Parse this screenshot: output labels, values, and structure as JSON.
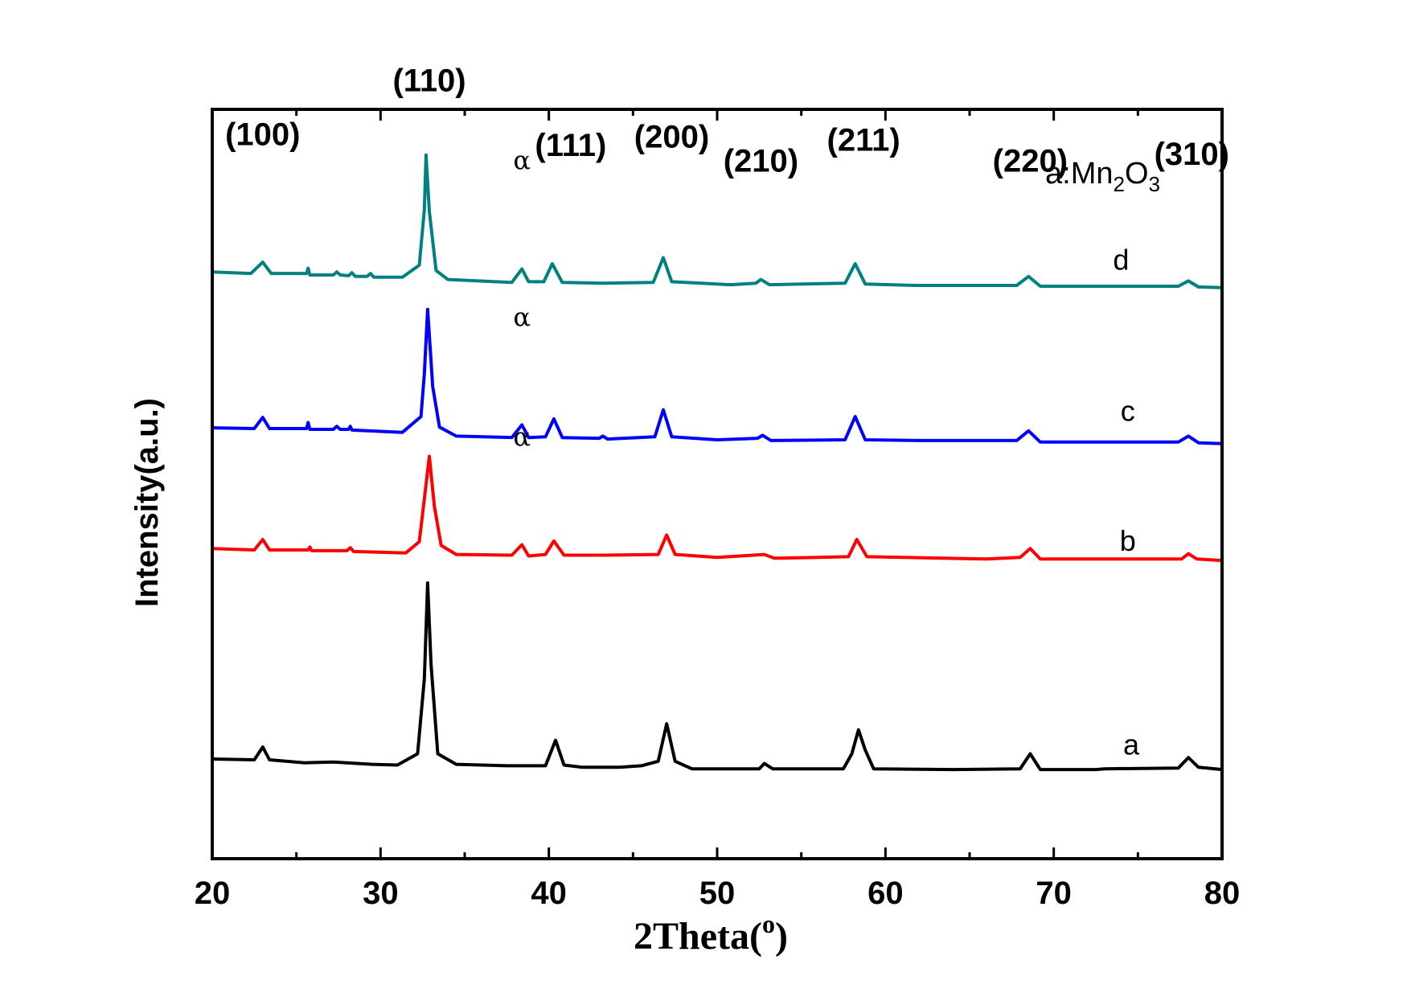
{
  "chart_data": {
    "type": "line",
    "title": "",
    "xlabel": "2Theta(",
    "xlabel_sup": "o",
    "xlabel_close": ")",
    "ylabel": "Intensity(a.u.)",
    "xlim": [
      20,
      80
    ],
    "ylim": [
      0,
      100
    ],
    "xticks": [
      20,
      30,
      40,
      50,
      60,
      70,
      80
    ],
    "annotation": {
      "prefix": "a:Mn",
      "sub1": "2",
      "mid": "O",
      "sub2": "3"
    },
    "peaks_hkl": [
      {
        "label": "(100)",
        "x": 23.0,
        "y": 95.2
      },
      {
        "label": "(110)",
        "x": 32.9,
        "y": 102.4
      },
      {
        "label": "(111)",
        "x": 41.3,
        "y": 93.8
      },
      {
        "label": "(200)",
        "x": 47.3,
        "y": 94.9
      },
      {
        "label": "(210)",
        "x": 52.6,
        "y": 91.7
      },
      {
        "label": "(211)",
        "x": 58.7,
        "y": 94.5
      },
      {
        "label": "(220)",
        "x": 68.6,
        "y": 91.7
      },
      {
        "label": "(310)",
        "x": 78.2,
        "y": 92.6
      }
    ],
    "alpha_marks": [
      {
        "label": "α",
        "x": 38.4,
        "y": 92.0
      },
      {
        "label": "α",
        "x": 38.4,
        "y": 71.1
      },
      {
        "label": "α",
        "x": 38.4,
        "y": 55.1
      }
    ],
    "series": [
      {
        "name": "a",
        "color": "#000000",
        "label_x": 74.6,
        "label_y": 13.9,
        "points": [
          [
            20,
            13.3
          ],
          [
            22.5,
            13.2
          ],
          [
            23.0,
            14.9
          ],
          [
            23.4,
            13.2
          ],
          [
            25.5,
            12.8
          ],
          [
            27.2,
            12.9
          ],
          [
            29.5,
            12.6
          ],
          [
            31.0,
            12.5
          ],
          [
            32.2,
            14.0
          ],
          [
            32.6,
            24.0
          ],
          [
            32.8,
            36.8
          ],
          [
            33.0,
            26.0
          ],
          [
            33.4,
            14.0
          ],
          [
            34.5,
            12.6
          ],
          [
            37.5,
            12.4
          ],
          [
            39.8,
            12.4
          ],
          [
            40.4,
            15.8
          ],
          [
            40.9,
            12.5
          ],
          [
            42.0,
            12.2
          ],
          [
            44.2,
            12.2
          ],
          [
            45.5,
            12.4
          ],
          [
            46.5,
            13.0
          ],
          [
            47.0,
            18.0
          ],
          [
            47.5,
            13.0
          ],
          [
            48.5,
            12.0
          ],
          [
            52.5,
            12.0
          ],
          [
            52.8,
            12.7
          ],
          [
            53.3,
            12.0
          ],
          [
            57.5,
            12.0
          ],
          [
            58.0,
            14.0
          ],
          [
            58.4,
            17.2
          ],
          [
            58.8,
            14.5
          ],
          [
            59.3,
            12.0
          ],
          [
            64.0,
            11.9
          ],
          [
            68.0,
            12.0
          ],
          [
            68.6,
            14.0
          ],
          [
            69.2,
            11.9
          ],
          [
            72.5,
            11.9
          ],
          [
            73.0,
            12.0
          ],
          [
            77.4,
            12.1
          ],
          [
            78.0,
            13.5
          ],
          [
            78.6,
            12.2
          ],
          [
            80,
            11.9
          ]
        ]
      },
      {
        "name": "b",
        "color": "#ff0000",
        "label_x": 74.4,
        "label_y": 41.1,
        "points": [
          [
            20,
            41.4
          ],
          [
            22.5,
            41.2
          ],
          [
            23.0,
            42.6
          ],
          [
            23.4,
            41.2
          ],
          [
            25.7,
            41.2
          ],
          [
            25.8,
            41.6
          ],
          [
            25.9,
            41.1
          ],
          [
            28.0,
            41.1
          ],
          [
            28.2,
            41.5
          ],
          [
            28.4,
            41.0
          ],
          [
            31.5,
            40.8
          ],
          [
            32.3,
            42.3
          ],
          [
            32.6,
            48.0
          ],
          [
            32.9,
            53.7
          ],
          [
            33.2,
            47.0
          ],
          [
            33.6,
            41.8
          ],
          [
            34.5,
            40.6
          ],
          [
            37.8,
            40.5
          ],
          [
            38.4,
            41.9
          ],
          [
            38.8,
            40.4
          ],
          [
            39.8,
            40.6
          ],
          [
            40.3,
            42.4
          ],
          [
            40.9,
            40.5
          ],
          [
            43.2,
            40.5
          ],
          [
            46.5,
            40.6
          ],
          [
            47.0,
            43.2
          ],
          [
            47.5,
            40.6
          ],
          [
            50.0,
            40.2
          ],
          [
            52.8,
            40.6
          ],
          [
            53.4,
            40.1
          ],
          [
            57.8,
            40.3
          ],
          [
            58.3,
            42.6
          ],
          [
            58.9,
            40.3
          ],
          [
            66.0,
            40.0
          ],
          [
            68.0,
            40.2
          ],
          [
            68.6,
            41.4
          ],
          [
            69.2,
            40.0
          ],
          [
            72.0,
            40.0
          ],
          [
            77.6,
            40.0
          ],
          [
            78.0,
            40.7
          ],
          [
            78.5,
            40.0
          ],
          [
            80,
            39.8
          ]
        ]
      },
      {
        "name": "c",
        "color": "#0000ff",
        "label_x": 74.4,
        "label_y": 58.4,
        "points": [
          [
            20,
            57.5
          ],
          [
            22.5,
            57.4
          ],
          [
            23.0,
            58.9
          ],
          [
            23.4,
            57.4
          ],
          [
            25.6,
            57.4
          ],
          [
            25.7,
            58.2
          ],
          [
            25.8,
            57.3
          ],
          [
            27.2,
            57.3
          ],
          [
            27.4,
            57.7
          ],
          [
            27.6,
            57.3
          ],
          [
            28.1,
            57.3
          ],
          [
            28.2,
            57.7
          ],
          [
            28.3,
            57.2
          ],
          [
            31.3,
            56.9
          ],
          [
            32.4,
            59.0
          ],
          [
            32.6,
            64.7
          ],
          [
            32.8,
            73.3
          ],
          [
            33.1,
            63.0
          ],
          [
            33.5,
            57.6
          ],
          [
            34.5,
            56.4
          ],
          [
            37.8,
            56.2
          ],
          [
            38.4,
            57.9
          ],
          [
            38.8,
            56.2
          ],
          [
            39.8,
            56.3
          ],
          [
            40.3,
            58.7
          ],
          [
            40.8,
            56.2
          ],
          [
            43.0,
            56.1
          ],
          [
            43.2,
            56.4
          ],
          [
            43.5,
            56.0
          ],
          [
            46.3,
            56.3
          ],
          [
            46.8,
            59.9
          ],
          [
            47.3,
            56.3
          ],
          [
            50.0,
            55.9
          ],
          [
            52.4,
            56.1
          ],
          [
            52.7,
            56.5
          ],
          [
            53.2,
            55.8
          ],
          [
            57.6,
            55.9
          ],
          [
            58.2,
            59.0
          ],
          [
            58.8,
            55.9
          ],
          [
            62.0,
            55.8
          ],
          [
            67.8,
            55.8
          ],
          [
            68.5,
            57.1
          ],
          [
            69.2,
            55.6
          ],
          [
            72.5,
            55.6
          ],
          [
            77.4,
            55.6
          ],
          [
            78.0,
            56.4
          ],
          [
            78.6,
            55.5
          ],
          [
            80,
            55.4
          ]
        ]
      },
      {
        "name": "d",
        "color": "#008080",
        "label_x": 74.0,
        "label_y": 78.6,
        "points": [
          [
            20,
            78.3
          ],
          [
            22.3,
            78.1
          ],
          [
            23.0,
            79.6
          ],
          [
            23.5,
            78.1
          ],
          [
            25.6,
            78.1
          ],
          [
            25.7,
            78.8
          ],
          [
            25.8,
            77.9
          ],
          [
            27.2,
            77.9
          ],
          [
            27.4,
            78.3
          ],
          [
            27.6,
            77.9
          ],
          [
            28.1,
            77.8
          ],
          [
            28.3,
            78.2
          ],
          [
            28.5,
            77.7
          ],
          [
            29.2,
            77.7
          ],
          [
            29.4,
            78.1
          ],
          [
            29.6,
            77.6
          ],
          [
            31.3,
            77.6
          ],
          [
            32.3,
            79.2
          ],
          [
            32.6,
            86.6
          ],
          [
            32.7,
            93.9
          ],
          [
            32.9,
            86.4
          ],
          [
            33.3,
            78.5
          ],
          [
            34.0,
            77.3
          ],
          [
            37.8,
            76.9
          ],
          [
            38.4,
            78.7
          ],
          [
            38.8,
            77.0
          ],
          [
            39.7,
            77.0
          ],
          [
            40.2,
            79.4
          ],
          [
            40.8,
            76.9
          ],
          [
            43.2,
            76.8
          ],
          [
            46.2,
            76.9
          ],
          [
            46.8,
            80.2
          ],
          [
            47.3,
            77.0
          ],
          [
            50.8,
            76.6
          ],
          [
            52.3,
            76.8
          ],
          [
            52.6,
            77.3
          ],
          [
            53.1,
            76.6
          ],
          [
            57.6,
            76.8
          ],
          [
            58.2,
            79.4
          ],
          [
            58.8,
            76.7
          ],
          [
            61.8,
            76.5
          ],
          [
            67.8,
            76.5
          ],
          [
            68.5,
            77.7
          ],
          [
            69.2,
            76.4
          ],
          [
            72.0,
            76.4
          ],
          [
            77.4,
            76.4
          ],
          [
            78.0,
            77.1
          ],
          [
            78.6,
            76.3
          ],
          [
            80,
            76.2
          ]
        ]
      }
    ]
  }
}
